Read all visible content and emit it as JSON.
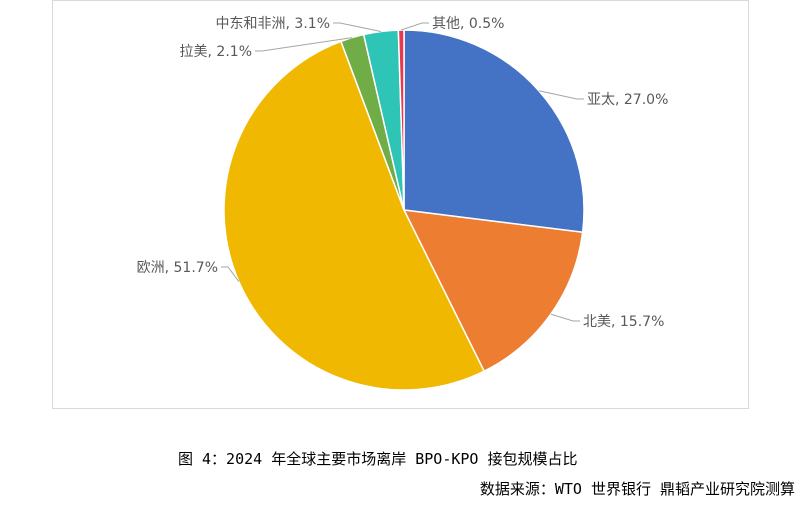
{
  "chart_data": {
    "type": "pie",
    "categories": [
      "亚太",
      "北美",
      "欧洲",
      "拉美",
      "中东和非洲",
      "其他"
    ],
    "values": [
      27.0,
      15.7,
      51.7,
      2.1,
      3.1,
      0.5
    ],
    "labels": [
      "亚太, 27.0%",
      "北美, 15.7%",
      "欧洲, 51.7%",
      "拉美, 2.1%",
      "中东和非洲, 3.1%",
      "其他, 0.5%"
    ],
    "colors": [
      "#4472C4",
      "#ED7D31",
      "#F0B800",
      "#70AD47",
      "#2EC4B6",
      "#E8384F"
    ],
    "title": "",
    "legend": "none",
    "start": "top",
    "direction": "clockwise"
  },
  "caption": {
    "title": "图 4：2024 年全球主要市场离岸 BPO-KPO 接包规模占比",
    "source": "数据来源：WTO 世界银行 鼎韬产业研究院测算"
  }
}
